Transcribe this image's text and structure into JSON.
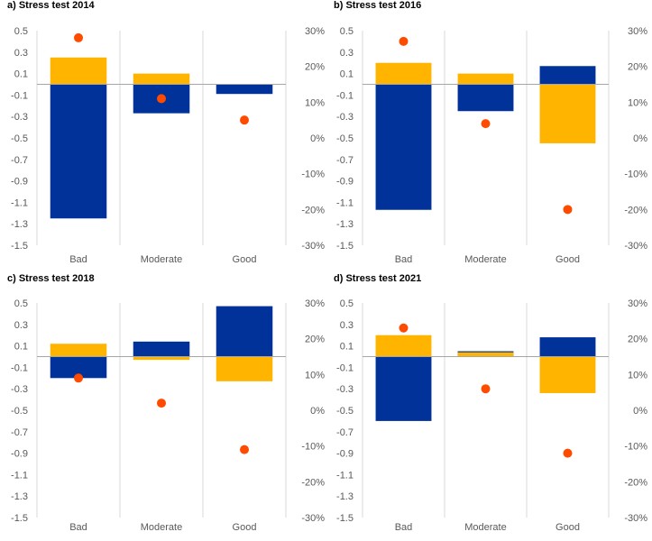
{
  "colors": {
    "blue": "#003299",
    "yellow": "#FFB400",
    "dot": "#FF4B00",
    "grid": "#D9D9D9",
    "zero": "#A6A6A6",
    "tick": "#595959"
  },
  "chart_data": [
    {
      "type": "bar",
      "title": "a) Stress test 2014",
      "categories": [
        "Bad",
        "Moderate",
        "Good"
      ],
      "yticks": [
        "0.5",
        "0.3",
        "0.1",
        "-0.1",
        "-0.3",
        "-0.5",
        "-0.7",
        "-0.9",
        "-1.1",
        "-1.3",
        "-1.5"
      ],
      "ylim": [
        -1.5,
        0.5
      ],
      "y2ticks": [
        "30%",
        "20%",
        "10%",
        "0%",
        "-10%",
        "-20%",
        "-30%"
      ],
      "y2lim": [
        -30,
        30
      ],
      "series": [
        {
          "name": "blue",
          "values": [
            -1.25,
            -0.27,
            -0.09
          ]
        },
        {
          "name": "yellow",
          "values": [
            0.25,
            0.1,
            0.0
          ]
        }
      ],
      "dots": [
        28,
        11,
        5
      ]
    },
    {
      "type": "bar",
      "title": "b) Stress test 2016",
      "categories": [
        "Bad",
        "Moderate",
        "Good"
      ],
      "yticks": [
        "0.5",
        "0.3",
        "0.1",
        "-0.1",
        "-0.3",
        "-0.5",
        "-0.7",
        "-0.9",
        "-1.1",
        "-1.3",
        "-1.5"
      ],
      "ylim": [
        -1.5,
        0.5
      ],
      "y2ticks": [
        "30%",
        "20%",
        "10%",
        "0%",
        "-10%",
        "-20%",
        "-30%"
      ],
      "y2lim": [
        -30,
        30
      ],
      "series": [
        {
          "name": "blue",
          "values": [
            -1.17,
            -0.25,
            0.17
          ]
        },
        {
          "name": "yellow",
          "values": [
            0.2,
            0.1,
            -0.55
          ]
        }
      ],
      "dots": [
        27,
        4,
        -20
      ]
    },
    {
      "type": "bar",
      "title": "c) Stress test 2018",
      "categories": [
        "Bad",
        "Moderate",
        "Good"
      ],
      "yticks": [
        "0.5",
        "0.3",
        "0.1",
        "-0.1",
        "-0.3",
        "-0.5",
        "-0.7",
        "-0.9",
        "-1.1",
        "-1.3",
        "-1.5"
      ],
      "ylim": [
        -1.5,
        0.5
      ],
      "y2ticks": [
        "30%",
        "20%",
        "10%",
        "0%",
        "-10%",
        "-20%",
        "-30%"
      ],
      "y2lim": [
        -30,
        30
      ],
      "series": [
        {
          "name": "blue",
          "values": [
            -0.2,
            0.14,
            0.47
          ]
        },
        {
          "name": "yellow",
          "values": [
            0.12,
            -0.03,
            -0.23
          ]
        }
      ],
      "dots": [
        9,
        2,
        -11
      ]
    },
    {
      "type": "bar",
      "title": "d) Stress test 2021",
      "categories": [
        "Bad",
        "Moderate",
        "Good"
      ],
      "yticks": [
        "0.5",
        "0.3",
        "0.1",
        "-0.1",
        "-0.3",
        "-0.5",
        "-0.7",
        "-0.9",
        "-1.1",
        "-1.3",
        "-1.5"
      ],
      "ylim": [
        -1.5,
        0.5
      ],
      "y2ticks": [
        "30%",
        "20%",
        "10%",
        "0%",
        "-10%",
        "-20%",
        "-30%"
      ],
      "y2lim": [
        -30,
        30
      ],
      "series": [
        {
          "name": "blue",
          "values": [
            -0.6,
            0.05,
            0.18
          ]
        },
        {
          "name": "yellow",
          "values": [
            0.2,
            0.04,
            -0.34
          ]
        }
      ],
      "dots": [
        23,
        6,
        -12
      ]
    }
  ]
}
